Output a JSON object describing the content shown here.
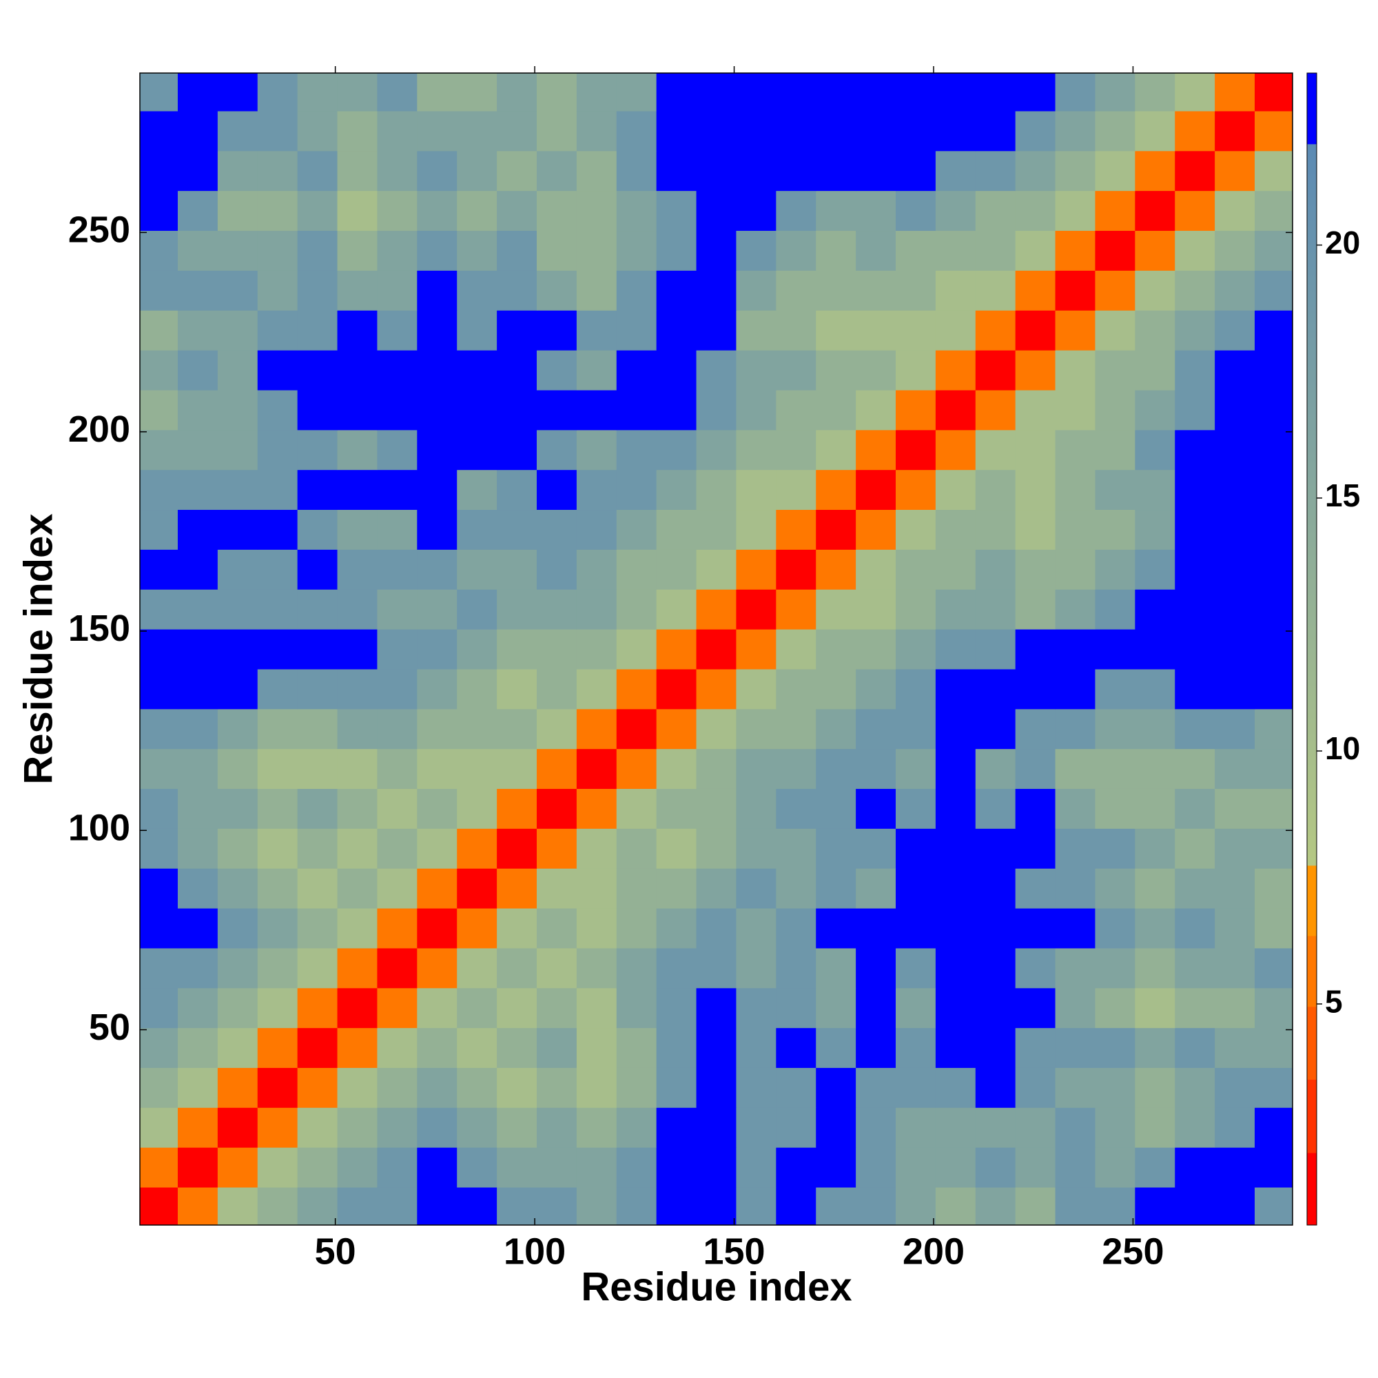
{
  "chart_data": {
    "type": "heatmap",
    "xlabel": "Residue index",
    "ylabel": "Residue index",
    "x": [
      5.5,
      15.5,
      25.5,
      35.5,
      45.5,
      55.5,
      65.5,
      75.5,
      85.5,
      95.5,
      105.5,
      115.5,
      125.5,
      135.5,
      145.5,
      155.5,
      165.5,
      175.5,
      185.5,
      195.5,
      205.5,
      215.5,
      225.5,
      235.5,
      245.5,
      255.5,
      265.5,
      275.5,
      285.5
    ],
    "y": [
      5.5,
      15.5,
      25.5,
      35.5,
      45.5,
      55.5,
      65.5,
      75.5,
      85.5,
      95.5,
      105.5,
      115.5,
      125.5,
      135.5,
      145.5,
      155.5,
      165.5,
      175.5,
      185.5,
      195.5,
      205.5,
      215.5,
      225.5,
      235.5,
      245.5,
      255.5,
      265.5,
      275.5,
      285.5
    ],
    "z": [
      [
        1,
        6,
        10,
        13,
        16,
        19,
        19,
        23,
        23,
        19,
        19,
        16,
        19,
        23,
        23,
        19,
        23,
        19,
        19,
        16,
        13,
        16,
        13,
        19,
        19,
        23,
        23,
        23,
        19
      ],
      [
        6,
        1,
        6,
        10,
        13,
        16,
        19,
        23,
        19,
        16,
        16,
        16,
        19,
        23,
        23,
        19,
        23,
        23,
        19,
        16,
        16,
        19,
        16,
        19,
        16,
        19,
        23,
        23,
        23
      ],
      [
        10,
        6,
        1,
        6,
        10,
        13,
        16,
        19,
        16,
        13,
        16,
        13,
        16,
        23,
        23,
        19,
        19,
        23,
        19,
        16,
        16,
        16,
        16,
        19,
        16,
        13,
        16,
        19,
        23
      ],
      [
        13,
        10,
        6,
        1,
        6,
        10,
        13,
        16,
        13,
        10,
        13,
        10,
        13,
        19,
        23,
        19,
        19,
        23,
        19,
        19,
        19,
        23,
        19,
        16,
        16,
        13,
        16,
        19,
        19
      ],
      [
        16,
        13,
        10,
        6,
        1,
        6,
        10,
        13,
        10,
        13,
        16,
        10,
        13,
        19,
        23,
        19,
        23,
        19,
        23,
        19,
        23,
        23,
        19,
        19,
        19,
        16,
        19,
        16,
        16
      ],
      [
        19,
        16,
        13,
        10,
        6,
        1,
        6,
        10,
        13,
        10,
        13,
        10,
        16,
        19,
        23,
        19,
        19,
        16,
        23,
        16,
        23,
        23,
        23,
        16,
        13,
        10,
        13,
        13,
        16
      ],
      [
        19,
        19,
        16,
        13,
        10,
        6,
        1,
        6,
        10,
        13,
        10,
        13,
        16,
        19,
        19,
        16,
        19,
        16,
        23,
        19,
        23,
        23,
        19,
        16,
        16,
        13,
        16,
        16,
        19
      ],
      [
        23,
        23,
        19,
        16,
        13,
        10,
        6,
        1,
        6,
        10,
        13,
        10,
        13,
        16,
        19,
        16,
        19,
        23,
        23,
        23,
        23,
        23,
        23,
        23,
        19,
        16,
        19,
        16,
        13
      ],
      [
        23,
        19,
        16,
        13,
        10,
        13,
        10,
        6,
        1,
        6,
        10,
        10,
        13,
        13,
        16,
        19,
        16,
        19,
        16,
        23,
        23,
        23,
        19,
        19,
        16,
        13,
        16,
        16,
        13
      ],
      [
        19,
        16,
        13,
        10,
        13,
        10,
        13,
        10,
        6,
        1,
        6,
        10,
        13,
        10,
        13,
        16,
        16,
        19,
        19,
        23,
        23,
        23,
        23,
        19,
        19,
        16,
        13,
        16,
        16
      ],
      [
        19,
        16,
        16,
        13,
        16,
        13,
        10,
        13,
        10,
        6,
        1,
        6,
        10,
        13,
        13,
        16,
        19,
        19,
        23,
        19,
        23,
        19,
        23,
        16,
        13,
        13,
        16,
        13,
        13
      ],
      [
        16,
        16,
        13,
        10,
        10,
        10,
        13,
        10,
        10,
        10,
        6,
        1,
        6,
        10,
        13,
        16,
        16,
        19,
        19,
        16,
        23,
        16,
        19,
        13,
        13,
        13,
        13,
        16,
        16
      ],
      [
        19,
        19,
        16,
        13,
        13,
        16,
        16,
        13,
        13,
        13,
        10,
        6,
        1,
        6,
        10,
        13,
        13,
        16,
        19,
        19,
        23,
        23,
        19,
        19,
        16,
        16,
        19,
        19,
        16
      ],
      [
        23,
        23,
        23,
        19,
        19,
        19,
        19,
        16,
        13,
        10,
        13,
        10,
        6,
        1,
        6,
        10,
        13,
        13,
        16,
        19,
        23,
        23,
        23,
        23,
        19,
        19,
        23,
        23,
        23
      ],
      [
        23,
        23,
        23,
        23,
        23,
        23,
        19,
        19,
        16,
        13,
        13,
        13,
        10,
        6,
        1,
        6,
        10,
        13,
        13,
        16,
        19,
        19,
        23,
        23,
        23,
        23,
        23,
        23,
        23
      ],
      [
        19,
        19,
        19,
        19,
        19,
        19,
        16,
        16,
        19,
        16,
        16,
        16,
        13,
        10,
        6,
        1,
        6,
        10,
        10,
        13,
        16,
        16,
        13,
        16,
        19,
        23,
        23,
        23,
        23
      ],
      [
        23,
        23,
        19,
        19,
        23,
        19,
        19,
        19,
        16,
        16,
        19,
        16,
        13,
        13,
        10,
        6,
        1,
        6,
        10,
        13,
        13,
        16,
        13,
        13,
        16,
        19,
        23,
        23,
        23
      ],
      [
        19,
        23,
        23,
        23,
        19,
        16,
        16,
        23,
        19,
        19,
        19,
        19,
        16,
        13,
        13,
        10,
        6,
        1,
        6,
        10,
        13,
        13,
        10,
        13,
        13,
        16,
        23,
        23,
        23
      ],
      [
        19,
        19,
        19,
        19,
        23,
        23,
        23,
        23,
        16,
        19,
        23,
        19,
        19,
        16,
        13,
        10,
        10,
        6,
        1,
        6,
        10,
        13,
        10,
        13,
        16,
        16,
        23,
        23,
        23
      ],
      [
        16,
        16,
        16,
        19,
        19,
        16,
        19,
        23,
        23,
        23,
        19,
        16,
        19,
        19,
        16,
        13,
        13,
        10,
        6,
        1,
        6,
        10,
        10,
        13,
        13,
        19,
        23,
        23,
        23
      ],
      [
        13,
        16,
        16,
        19,
        23,
        23,
        23,
        23,
        23,
        23,
        23,
        23,
        23,
        23,
        19,
        16,
        13,
        13,
        10,
        6,
        1,
        6,
        10,
        10,
        13,
        16,
        19,
        23,
        23
      ],
      [
        16,
        19,
        16,
        23,
        23,
        23,
        23,
        23,
        23,
        23,
        19,
        16,
        23,
        23,
        19,
        16,
        16,
        13,
        13,
        10,
        6,
        1,
        6,
        10,
        13,
        13,
        19,
        23,
        23
      ],
      [
        13,
        16,
        16,
        19,
        19,
        23,
        19,
        23,
        19,
        23,
        23,
        19,
        19,
        23,
        23,
        13,
        13,
        10,
        10,
        10,
        10,
        6,
        1,
        6,
        10,
        13,
        16,
        19,
        23
      ],
      [
        19,
        19,
        19,
        16,
        19,
        16,
        16,
        23,
        19,
        19,
        16,
        13,
        19,
        23,
        23,
        16,
        13,
        13,
        13,
        13,
        10,
        10,
        6,
        1,
        6,
        10,
        13,
        16,
        19
      ],
      [
        19,
        16,
        16,
        16,
        19,
        13,
        16,
        19,
        16,
        19,
        13,
        13,
        16,
        19,
        23,
        19,
        16,
        13,
        16,
        13,
        13,
        13,
        10,
        6,
        1,
        6,
        10,
        13,
        16
      ],
      [
        23,
        19,
        13,
        13,
        16,
        10,
        13,
        16,
        13,
        16,
        13,
        13,
        16,
        19,
        23,
        23,
        19,
        16,
        16,
        19,
        16,
        13,
        13,
        10,
        6,
        1,
        6,
        10,
        13
      ],
      [
        23,
        23,
        16,
        16,
        19,
        13,
        16,
        19,
        16,
        13,
        16,
        13,
        19,
        23,
        23,
        23,
        23,
        23,
        23,
        23,
        19,
        19,
        16,
        13,
        10,
        6,
        1,
        6,
        10
      ],
      [
        23,
        23,
        19,
        19,
        16,
        13,
        16,
        16,
        16,
        16,
        13,
        16,
        19,
        23,
        23,
        23,
        23,
        23,
        23,
        23,
        23,
        23,
        19,
        16,
        13,
        10,
        6,
        1,
        6
      ],
      [
        19,
        23,
        23,
        19,
        16,
        16,
        19,
        13,
        13,
        16,
        13,
        16,
        16,
        23,
        23,
        23,
        23,
        23,
        23,
        23,
        23,
        23,
        23,
        19,
        16,
        13,
        10,
        6,
        1
      ]
    ],
    "xlim": [
      1,
      290
    ],
    "ylim": [
      1,
      290
    ],
    "xticks": [
      50,
      100,
      150,
      200,
      250
    ],
    "yticks": [
      50,
      100,
      150,
      200,
      250
    ],
    "zlim": [
      0.63,
      23.4
    ],
    "zticks": [
      5,
      10,
      15,
      20
    ],
    "colorscale": [
      [
        0.63,
        "#ff0000"
      ],
      [
        2.06,
        "#ff0000"
      ],
      [
        2.06,
        "#ff3300"
      ],
      [
        3.51,
        "#ff3300"
      ],
      [
        3.51,
        "#ff5a00"
      ],
      [
        4.95,
        "#ff5a00"
      ],
      [
        4.95,
        "#ff7800"
      ],
      [
        6.35,
        "#ff7800"
      ],
      [
        6.35,
        "#ff9500"
      ],
      [
        7.74,
        "#ff9500"
      ],
      [
        7.74,
        "#b5c883"
      ],
      [
        22.0,
        "#5b8ab4"
      ],
      [
        22.0,
        "#0000ff"
      ],
      [
        23.4,
        "#0000ff"
      ]
    ]
  }
}
